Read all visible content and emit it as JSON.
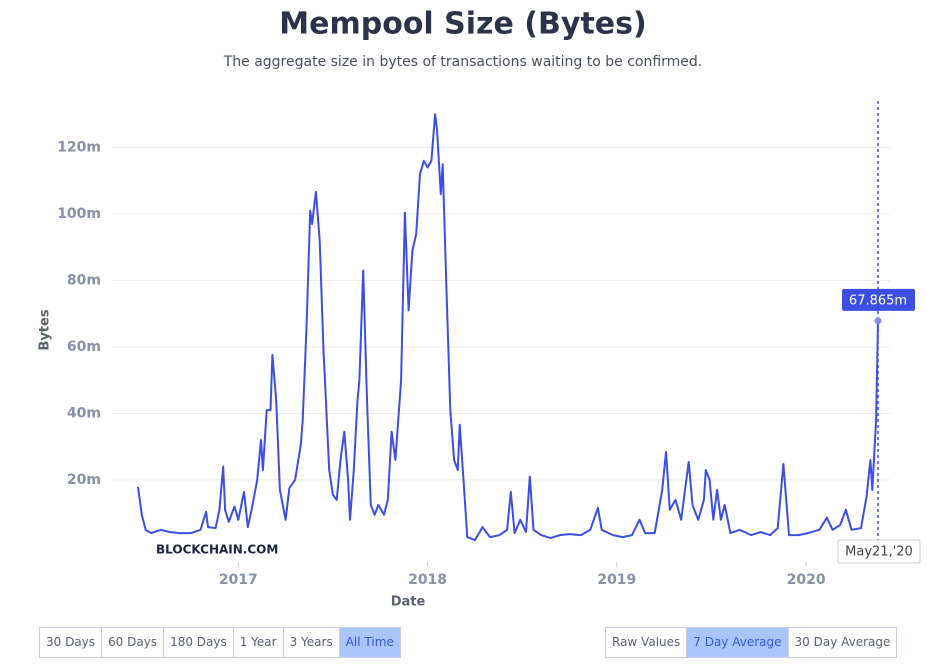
{
  "chart_data": {
    "type": "line",
    "title": "Mempool Size (Bytes)",
    "subtitle": "The aggregate size in bytes of transactions waiting to be confirmed.",
    "x_label": "Date",
    "y_label": "Bytes",
    "watermark": "BLOCKCHAIN.COM",
    "color": "#3b4fe4",
    "grid": true,
    "x": [
      2016.47,
      2016.49,
      2016.51,
      2016.54,
      2016.59,
      2016.64,
      2016.69,
      2016.75,
      2016.8,
      2016.83,
      2016.84,
      2016.88,
      2016.9,
      2016.92,
      2016.93,
      2016.95,
      2016.98,
      2017.0,
      2017.03,
      2017.05,
      2017.07,
      2017.1,
      2017.12,
      2017.13,
      2017.15,
      2017.17,
      2017.18,
      2017.2,
      2017.22,
      2017.25,
      2017.27,
      2017.3,
      2017.33,
      2017.34,
      2017.36,
      2017.38,
      2017.39,
      2017.41,
      2017.43,
      2017.45,
      2017.48,
      2017.5,
      2017.52,
      2017.54,
      2017.56,
      2017.58,
      2017.59,
      2017.61,
      2017.63,
      2017.64,
      2017.66,
      2017.68,
      2017.7,
      2017.72,
      2017.74,
      2017.77,
      2017.79,
      2017.81,
      2017.83,
      2017.86,
      2017.88,
      2017.9,
      2017.92,
      2017.94,
      2017.96,
      2017.98,
      2018.0,
      2018.02,
      2018.04,
      2018.05,
      2018.07,
      2018.08,
      2018.1,
      2018.12,
      2018.14,
      2018.16,
      2018.17,
      2018.19,
      2018.21,
      2018.25,
      2018.29,
      2018.33,
      2018.38,
      2018.42,
      2018.44,
      2018.46,
      2018.49,
      2018.52,
      2018.54,
      2018.56,
      2018.6,
      2018.65,
      2018.7,
      2018.75,
      2018.81,
      2018.86,
      2018.9,
      2018.92,
      2018.98,
      2019.03,
      2019.08,
      2019.12,
      2019.15,
      2019.2,
      2019.24,
      2019.26,
      2019.28,
      2019.31,
      2019.34,
      2019.36,
      2019.38,
      2019.4,
      2019.43,
      2019.46,
      2019.47,
      2019.49,
      2019.51,
      2019.53,
      2019.55,
      2019.57,
      2019.6,
      2019.65,
      2019.71,
      2019.76,
      2019.81,
      2019.85,
      2019.88,
      2019.91,
      2019.96,
      2020.01,
      2020.07,
      2020.11,
      2020.14,
      2020.18,
      2020.21,
      2020.24,
      2020.29,
      2020.32,
      2020.34,
      2020.35,
      2020.37,
      2020.38
    ],
    "values": [
      17.9,
      9.5,
      5,
      4,
      5,
      4.3,
      4,
      4,
      5,
      10.4,
      5.8,
      5.5,
      11,
      24,
      11,
      7.4,
      12,
      8,
      16.4,
      5.8,
      11,
      20,
      32,
      23,
      41,
      41,
      57.6,
      44,
      17,
      8,
      17.6,
      20,
      30.6,
      38,
      65,
      101,
      97,
      106.7,
      92,
      59,
      23,
      15.5,
      14,
      26,
      34.5,
      20,
      8,
      23,
      44,
      50,
      83,
      44,
      12.5,
      9.5,
      12.5,
      9.5,
      14,
      34.5,
      26,
      50,
      100.4,
      71,
      89,
      94,
      112,
      116,
      114,
      116,
      130,
      125.5,
      106,
      115,
      77,
      41,
      26,
      23,
      36.6,
      20,
      2.8,
      1.9,
      5.8,
      2.8,
      3.4,
      5,
      16.4,
      4,
      8,
      4.3,
      21,
      5,
      3.4,
      2.5,
      3.4,
      3.7,
      3.4,
      5,
      11.6,
      5,
      3.4,
      2.8,
      3.4,
      8,
      4,
      4,
      17,
      28.4,
      11,
      14,
      8,
      17,
      25.4,
      12.5,
      8,
      14,
      23,
      20,
      8,
      17,
      8,
      12.5,
      4,
      5,
      3.4,
      4.3,
      3.4,
      5.5,
      24.8,
      3.4,
      3.4,
      4,
      5,
      8.6,
      5,
      6.4,
      11,
      5,
      5.5,
      15,
      26,
      17,
      38,
      67.865
    ],
    "xlim": [
      2016.47,
      2020.38
    ],
    "xticks": [
      2017,
      2018,
      2019,
      2020
    ],
    "ylim": [
      0,
      134
    ],
    "yticks": [
      {
        "value": 20,
        "label": "20m"
      },
      {
        "value": 40,
        "label": "40m"
      },
      {
        "value": 60,
        "label": "60m"
      },
      {
        "value": 80,
        "label": "80m"
      },
      {
        "value": 100,
        "label": "100m"
      },
      {
        "value": 120,
        "label": "120m"
      }
    ],
    "hover": {
      "value": 67.865,
      "value_label": "67.865m",
      "date_label": "May21,'20"
    }
  },
  "controls": {
    "range": [
      {
        "label": "30 Days",
        "active": false
      },
      {
        "label": "60 Days",
        "active": false
      },
      {
        "label": "180 Days",
        "active": false
      },
      {
        "label": "1 Year",
        "active": false
      },
      {
        "label": "3 Years",
        "active": false
      },
      {
        "label": "All Time",
        "active": true
      }
    ],
    "average": [
      {
        "label": "Raw Values",
        "active": false
      },
      {
        "label": "7 Day Average",
        "active": true
      },
      {
        "label": "30 Day Average",
        "active": false
      }
    ]
  }
}
